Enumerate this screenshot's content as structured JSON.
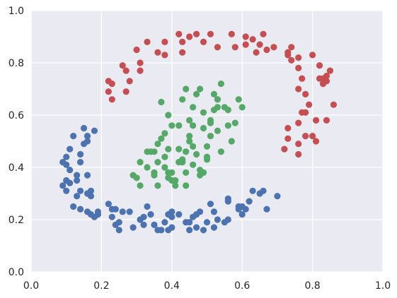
{
  "chart_data": {
    "type": "scatter",
    "title": "",
    "xlabel": "",
    "ylabel": "",
    "xlim": [
      0,
      1
    ],
    "ylim": [
      0,
      1
    ],
    "grid": true,
    "x_ticks": [
      "0.0",
      "0.2",
      "0.4",
      "0.6",
      "0.8",
      "1.0"
    ],
    "y_ticks": [
      "0.0",
      "0.2",
      "0.4",
      "0.6",
      "0.8",
      "1.0"
    ],
    "series": [
      {
        "color": "#c44e52",
        "points": [
          [
            0.22,
            0.69
          ],
          [
            0.22,
            0.73
          ],
          [
            0.23,
            0.66
          ],
          [
            0.23,
            0.72
          ],
          [
            0.26,
            0.79
          ],
          [
            0.27,
            0.77
          ],
          [
            0.27,
            0.69
          ],
          [
            0.28,
            0.73
          ],
          [
            0.3,
            0.85
          ],
          [
            0.31,
            0.8
          ],
          [
            0.31,
            0.77
          ],
          [
            0.33,
            0.88
          ],
          [
            0.36,
            0.84
          ],
          [
            0.38,
            0.88
          ],
          [
            0.38,
            0.83
          ],
          [
            0.42,
            0.91
          ],
          [
            0.43,
            0.84
          ],
          [
            0.43,
            0.88
          ],
          [
            0.45,
            0.9
          ],
          [
            0.47,
            0.91
          ],
          [
            0.49,
            0.88
          ],
          [
            0.51,
            0.91
          ],
          [
            0.53,
            0.86
          ],
          [
            0.57,
            0.91
          ],
          [
            0.58,
            0.86
          ],
          [
            0.61,
            0.9
          ],
          [
            0.61,
            0.87
          ],
          [
            0.63,
            0.89
          ],
          [
            0.64,
            0.84
          ],
          [
            0.65,
            0.87
          ],
          [
            0.66,
            0.91
          ],
          [
            0.67,
            0.85
          ],
          [
            0.69,
            0.86
          ],
          [
            0.73,
            0.84
          ],
          [
            0.74,
            0.86
          ],
          [
            0.73,
            0.83
          ],
          [
            0.74,
            0.81
          ],
          [
            0.76,
            0.82
          ],
          [
            0.76,
            0.78
          ],
          [
            0.77,
            0.74
          ],
          [
            0.76,
            0.7
          ],
          [
            0.78,
            0.68
          ],
          [
            0.79,
            0.64
          ],
          [
            0.77,
            0.61
          ],
          [
            0.78,
            0.61
          ],
          [
            0.76,
            0.57
          ],
          [
            0.78,
            0.52
          ],
          [
            0.8,
            0.52
          ],
          [
            0.81,
            0.5
          ],
          [
            0.76,
            0.49
          ],
          [
            0.76,
            0.45
          ],
          [
            0.73,
            0.51
          ],
          [
            0.72,
            0.47
          ],
          [
            0.73,
            0.55
          ],
          [
            0.8,
            0.83
          ],
          [
            0.82,
            0.79
          ],
          [
            0.82,
            0.74
          ],
          [
            0.83,
            0.72
          ],
          [
            0.84,
            0.73
          ],
          [
            0.84,
            0.75
          ],
          [
            0.85,
            0.77
          ],
          [
            0.86,
            0.64
          ],
          [
            0.84,
            0.58
          ],
          [
            0.81,
            0.58
          ],
          [
            0.83,
            0.74
          ]
        ]
      },
      {
        "color": "#4c72b0",
        "points": [
          [
            0.09,
            0.33
          ],
          [
            0.1,
            0.31
          ],
          [
            0.1,
            0.35
          ],
          [
            0.11,
            0.34
          ],
          [
            0.11,
            0.39
          ],
          [
            0.09,
            0.42
          ],
          [
            0.1,
            0.41
          ],
          [
            0.1,
            0.44
          ],
          [
            0.11,
            0.47
          ],
          [
            0.12,
            0.52
          ],
          [
            0.13,
            0.37
          ],
          [
            0.13,
            0.35
          ],
          [
            0.13,
            0.29
          ],
          [
            0.14,
            0.31
          ],
          [
            0.14,
            0.42
          ],
          [
            0.14,
            0.45
          ],
          [
            0.15,
            0.49
          ],
          [
            0.15,
            0.55
          ],
          [
            0.16,
            0.52
          ],
          [
            0.16,
            0.5
          ],
          [
            0.16,
            0.37
          ],
          [
            0.16,
            0.3
          ],
          [
            0.17,
            0.31
          ],
          [
            0.17,
            0.29
          ],
          [
            0.18,
            0.54
          ],
          [
            0.14,
            0.24
          ],
          [
            0.16,
            0.23
          ],
          [
            0.17,
            0.22
          ],
          [
            0.18,
            0.21
          ],
          [
            0.19,
            0.23
          ],
          [
            0.22,
            0.26
          ],
          [
            0.23,
            0.24
          ],
          [
            0.23,
            0.21
          ],
          [
            0.24,
            0.18
          ],
          [
            0.24,
            0.24
          ],
          [
            0.25,
            0.16
          ],
          [
            0.25,
            0.19
          ],
          [
            0.26,
            0.23
          ],
          [
            0.28,
            0.23
          ],
          [
            0.29,
            0.17
          ],
          [
            0.31,
            0.2
          ],
          [
            0.32,
            0.18
          ],
          [
            0.33,
            0.25
          ],
          [
            0.34,
            0.22
          ],
          [
            0.35,
            0.18
          ],
          [
            0.36,
            0.16
          ],
          [
            0.37,
            0.16
          ],
          [
            0.38,
            0.19
          ],
          [
            0.39,
            0.16
          ],
          [
            0.39,
            0.22
          ],
          [
            0.4,
            0.17
          ],
          [
            0.4,
            0.21
          ],
          [
            0.4,
            0.23
          ],
          [
            0.42,
            0.22
          ],
          [
            0.44,
            0.19
          ],
          [
            0.45,
            0.19
          ],
          [
            0.45,
            0.16
          ],
          [
            0.46,
            0.21
          ],
          [
            0.47,
            0.17
          ],
          [
            0.48,
            0.23
          ],
          [
            0.49,
            0.16
          ],
          [
            0.5,
            0.19
          ],
          [
            0.51,
            0.26
          ],
          [
            0.52,
            0.17
          ],
          [
            0.52,
            0.23
          ],
          [
            0.53,
            0.2
          ],
          [
            0.55,
            0.19
          ],
          [
            0.56,
            0.2
          ],
          [
            0.56,
            0.27
          ],
          [
            0.56,
            0.28
          ],
          [
            0.59,
            0.25
          ],
          [
            0.59,
            0.24
          ],
          [
            0.6,
            0.25
          ],
          [
            0.6,
            0.22
          ],
          [
            0.61,
            0.24
          ],
          [
            0.62,
            0.27
          ],
          [
            0.63,
            0.31
          ],
          [
            0.65,
            0.3
          ],
          [
            0.66,
            0.31
          ],
          [
            0.67,
            0.24
          ],
          [
            0.7,
            0.29
          ],
          [
            0.12,
            0.25
          ],
          [
            0.19,
            0.22
          ],
          [
            0.32,
            0.21
          ],
          [
            0.47,
            0.22
          ]
        ]
      },
      {
        "color": "#55a868",
        "points": [
          [
            0.29,
            0.37
          ],
          [
            0.3,
            0.36
          ],
          [
            0.31,
            0.33
          ],
          [
            0.33,
            0.4
          ],
          [
            0.33,
            0.46
          ],
          [
            0.34,
            0.46
          ],
          [
            0.35,
            0.38
          ],
          [
            0.35,
            0.37
          ],
          [
            0.36,
            0.33
          ],
          [
            0.36,
            0.42
          ],
          [
            0.36,
            0.49
          ],
          [
            0.37,
            0.51
          ],
          [
            0.38,
            0.53
          ],
          [
            0.38,
            0.44
          ],
          [
            0.38,
            0.4
          ],
          [
            0.39,
            0.38
          ],
          [
            0.39,
            0.36
          ],
          [
            0.39,
            0.47
          ],
          [
            0.39,
            0.6
          ],
          [
            0.4,
            0.56
          ],
          [
            0.4,
            0.38
          ],
          [
            0.41,
            0.35
          ],
          [
            0.41,
            0.33
          ],
          [
            0.42,
            0.42
          ],
          [
            0.42,
            0.47
          ],
          [
            0.42,
            0.56
          ],
          [
            0.43,
            0.43
          ],
          [
            0.43,
            0.66
          ],
          [
            0.43,
            0.42
          ],
          [
            0.44,
            0.38
          ],
          [
            0.44,
            0.33
          ],
          [
            0.44,
            0.46
          ],
          [
            0.45,
            0.5
          ],
          [
            0.45,
            0.52
          ],
          [
            0.45,
            0.58
          ],
          [
            0.46,
            0.63
          ],
          [
            0.46,
            0.56
          ],
          [
            0.46,
            0.41
          ],
          [
            0.47,
            0.68
          ],
          [
            0.47,
            0.45
          ],
          [
            0.48,
            0.39
          ],
          [
            0.48,
            0.7
          ],
          [
            0.49,
            0.61
          ],
          [
            0.49,
            0.55
          ],
          [
            0.5,
            0.43
          ],
          [
            0.5,
            0.48
          ],
          [
            0.51,
            0.52
          ],
          [
            0.51,
            0.58
          ],
          [
            0.52,
            0.62
          ],
          [
            0.52,
            0.68
          ],
          [
            0.53,
            0.63
          ],
          [
            0.53,
            0.66
          ],
          [
            0.53,
            0.54
          ],
          [
            0.54,
            0.72
          ],
          [
            0.54,
            0.46
          ],
          [
            0.55,
            0.63
          ],
          [
            0.56,
            0.62
          ],
          [
            0.56,
            0.56
          ],
          [
            0.57,
            0.5
          ],
          [
            0.58,
            0.57
          ],
          [
            0.59,
            0.66
          ],
          [
            0.6,
            0.63
          ],
          [
            0.37,
            0.65
          ],
          [
            0.44,
            0.7
          ],
          [
            0.48,
            0.37
          ],
          [
            0.49,
            0.38
          ],
          [
            0.5,
            0.44
          ],
          [
            0.51,
            0.57
          ],
          [
            0.46,
            0.48
          ],
          [
            0.4,
            0.35
          ],
          [
            0.31,
            0.42
          ],
          [
            0.35,
            0.46
          ],
          [
            0.44,
            0.46
          ],
          [
            0.53,
            0.66
          ]
        ]
      }
    ]
  }
}
